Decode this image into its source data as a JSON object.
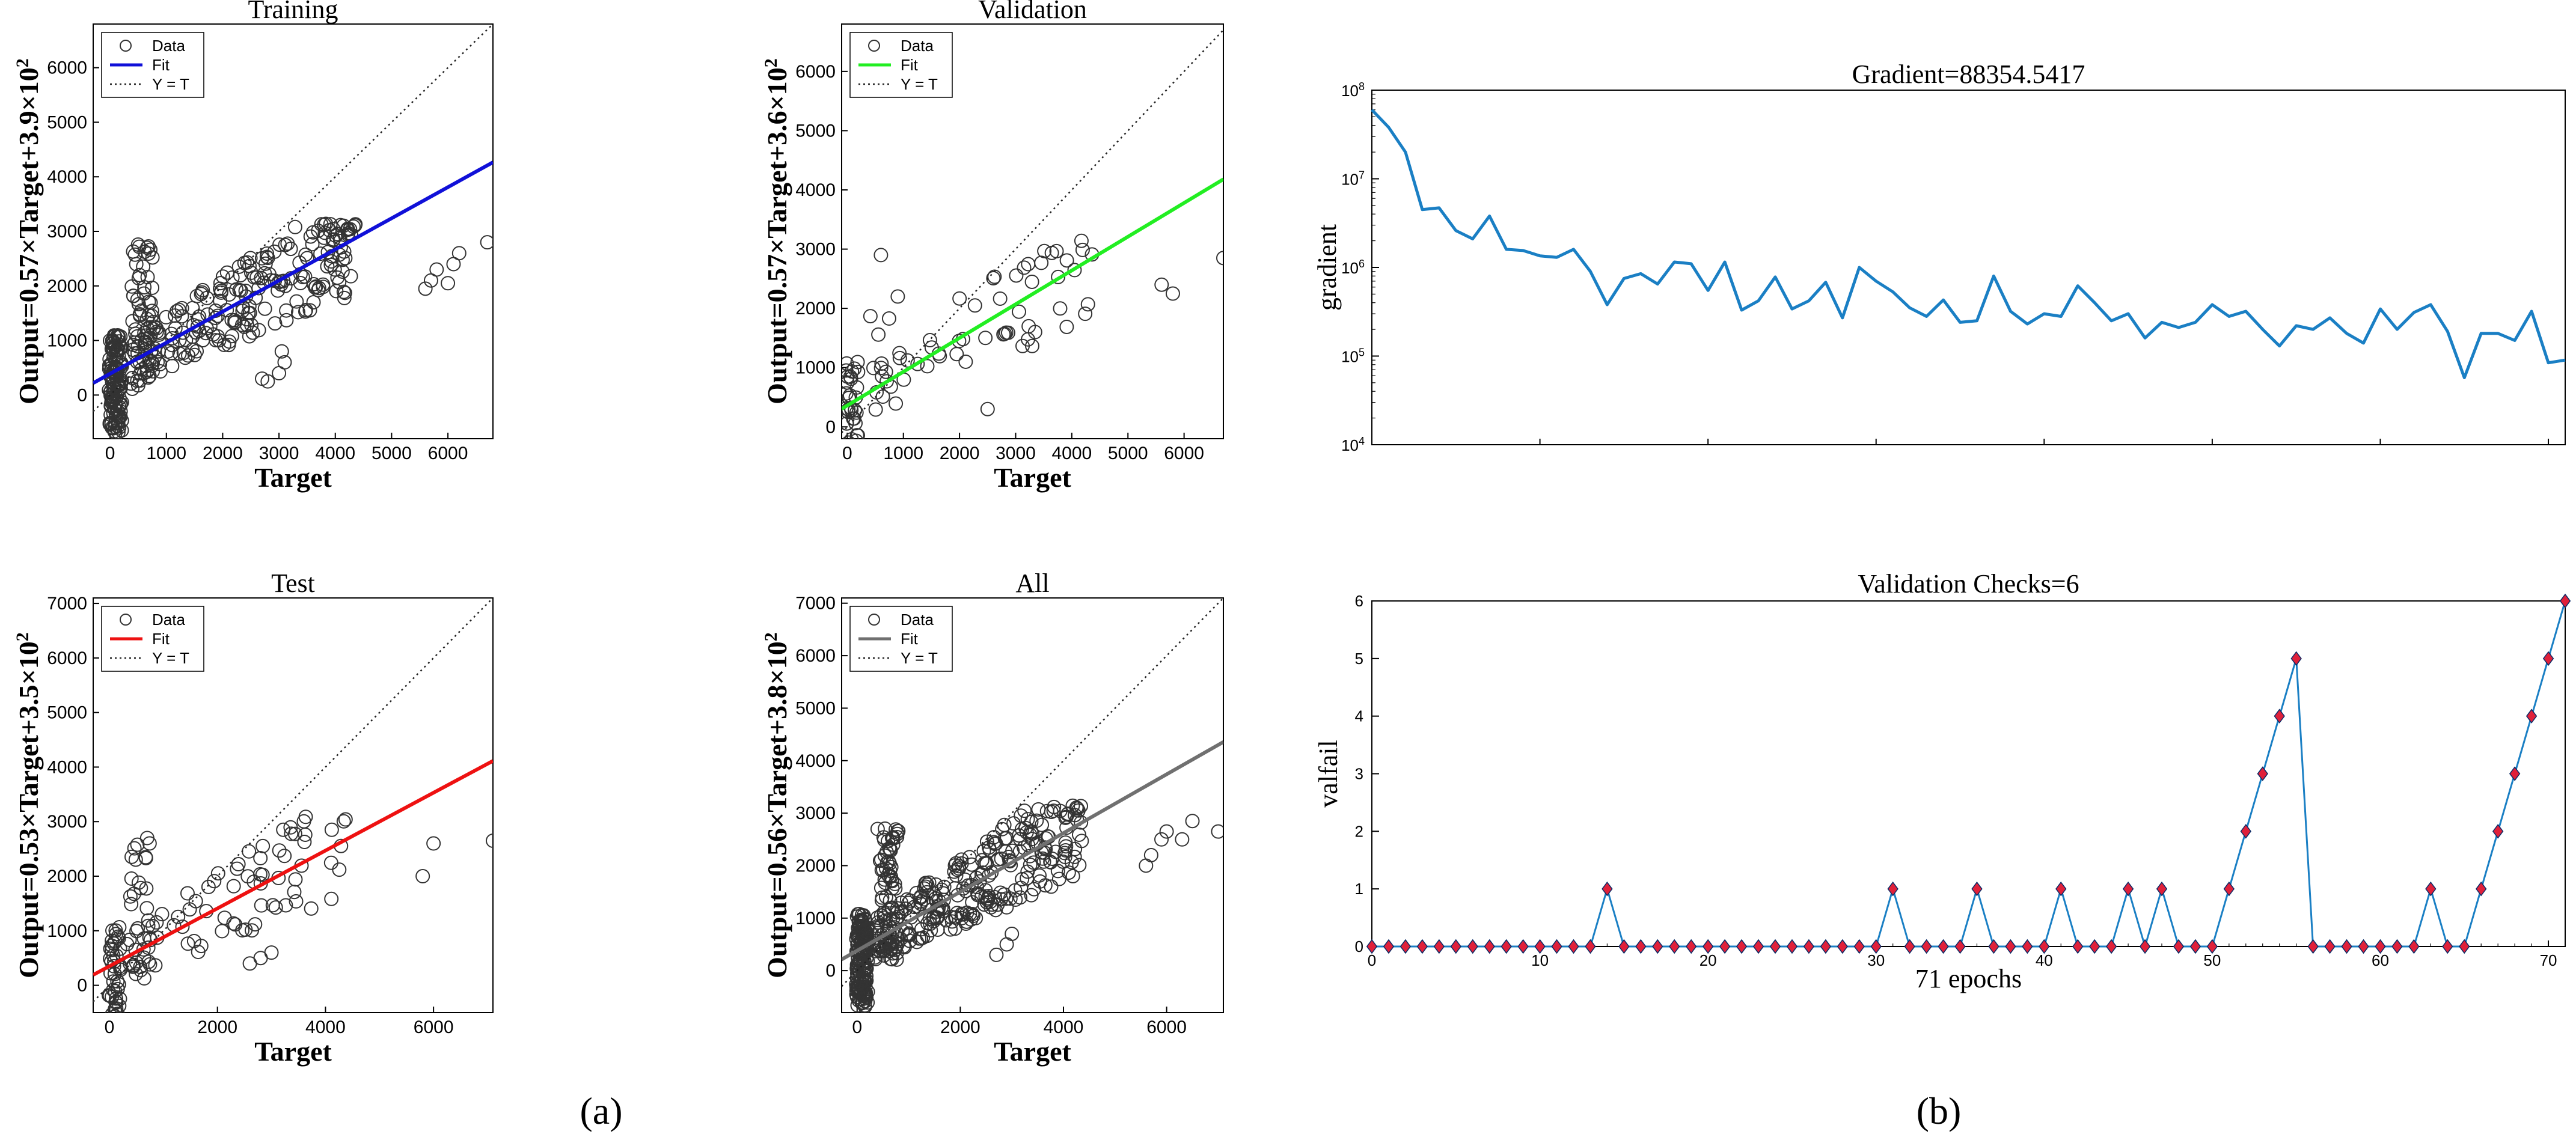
{
  "panels": {
    "a": "(a)",
    "b": "(b)"
  },
  "chart_data": [
    {
      "id": "training",
      "type": "scatter",
      "title": "Training",
      "xlabel": "Target",
      "ylabel": "Output=0.57×Target+3.9×10",
      "ylabel_sup": "2",
      "xlim": [
        -300,
        6800
      ],
      "ylim": [
        -800,
        6800
      ],
      "xticks": [
        0,
        1000,
        2000,
        3000,
        4000,
        5000,
        6000
      ],
      "yticks": [
        0,
        1000,
        2000,
        3000,
        4000,
        5000,
        6000
      ],
      "fit": {
        "slope": 0.57,
        "intercept": 390,
        "color": "#1010d8"
      },
      "legend": [
        "Data",
        "Fit",
        "Y = T"
      ],
      "seed": 11,
      "n": 420,
      "outliers": [
        [
          5600,
          1950
        ],
        [
          5700,
          2100
        ],
        [
          5800,
          2300
        ],
        [
          6000,
          2050
        ],
        [
          6100,
          2400
        ],
        [
          6200,
          2600
        ],
        [
          6700,
          2800
        ],
        [
          2800,
          250
        ],
        [
          3000,
          400
        ],
        [
          3100,
          600
        ],
        [
          2700,
          300
        ],
        [
          3050,
          800
        ]
      ]
    },
    {
      "id": "validation",
      "type": "scatter",
      "title": "Validation",
      "xlabel": "Target",
      "ylabel": "Output=0.57×Target+3.6×10",
      "ylabel_sup": "2",
      "xlim": [
        -100,
        6700
      ],
      "ylim": [
        -200,
        6800
      ],
      "xticks": [
        0,
        1000,
        2000,
        3000,
        4000,
        5000,
        6000
      ],
      "yticks": [
        0,
        1000,
        2000,
        3000,
        4000,
        5000,
        6000
      ],
      "fit": {
        "slope": 0.57,
        "intercept": 360,
        "color": "#22ee22"
      },
      "legend": [
        "Data",
        "Fit",
        "Y = T"
      ],
      "seed": 23,
      "n": 110,
      "outliers": [
        [
          5600,
          2400
        ],
        [
          5800,
          2250
        ],
        [
          6700,
          2850
        ],
        [
          2500,
          300
        ],
        [
          600,
          2900
        ],
        [
          900,
          2200
        ]
      ]
    },
    {
      "id": "test",
      "type": "scatter",
      "title": "Test",
      "xlabel": "Target",
      "ylabel": "Output=0.53×Target+3.5×10",
      "ylabel_sup": "2",
      "xlim": [
        -300,
        7100
      ],
      "ylim": [
        -500,
        7100
      ],
      "xticks": [
        0,
        2000,
        4000,
        6000
      ],
      "yticks": [
        0,
        1000,
        2000,
        3000,
        4000,
        5000,
        6000,
        7000
      ],
      "fit": {
        "slope": 0.53,
        "intercept": 350,
        "color": "#ee1111"
      },
      "legend": [
        "Data",
        "Fit",
        "Y = T"
      ],
      "seed": 37,
      "n": 150,
      "outliers": [
        [
          5800,
          2000
        ],
        [
          6000,
          2600
        ],
        [
          7100,
          2650
        ],
        [
          2600,
          400
        ],
        [
          2800,
          500
        ],
        [
          3000,
          600
        ],
        [
          700,
          2700
        ]
      ]
    },
    {
      "id": "all",
      "type": "scatter",
      "title": "All",
      "xlabel": "Target",
      "ylabel": "Output=0.56×Target+3.8×10",
      "ylabel_sup": "2",
      "xlim": [
        -300,
        7100
      ],
      "ylim": [
        -800,
        7100
      ],
      "xticks": [
        0,
        2000,
        4000,
        6000
      ],
      "yticks": [
        0,
        1000,
        2000,
        3000,
        4000,
        5000,
        6000,
        7000
      ],
      "fit": {
        "slope": 0.56,
        "intercept": 380,
        "color": "#707070"
      },
      "legend": [
        "Data",
        "Fit",
        "Y = T"
      ],
      "seed": 53,
      "n": 520,
      "outliers": [
        [
          5600,
          2000
        ],
        [
          5700,
          2200
        ],
        [
          5900,
          2500
        ],
        [
          6000,
          2650
        ],
        [
          6300,
          2500
        ],
        [
          6500,
          2850
        ],
        [
          7000,
          2650
        ],
        [
          2700,
          300
        ],
        [
          2900,
          500
        ],
        [
          3000,
          700
        ],
        [
          1900,
          800
        ]
      ]
    },
    {
      "id": "gradient",
      "type": "line",
      "title": "Gradient=88354.5417",
      "xlabel": "",
      "ylabel": "gradient",
      "xlim": [
        0,
        71
      ],
      "ylog": true,
      "ylim_exp": [
        4,
        8
      ],
      "yticks_exp": [
        4,
        5,
        6,
        7,
        8
      ],
      "color": "#1a7fc4",
      "values": [
        60000000,
        38000000,
        20000000,
        4500000,
        4700000,
        2600000,
        2100000,
        3800000,
        1600000,
        1550000,
        1350000,
        1300000,
        1600000,
        900000,
        380000,
        750000,
        850000,
        650000,
        1150000,
        1100000,
        550000,
        1150000,
        330000,
        420000,
        780000,
        340000,
        420000,
        680000,
        270000,
        1000000,
        700000,
        530000,
        350000,
        280000,
        430000,
        240000,
        250000,
        800000,
        320000,
        230000,
        300000,
        280000,
        620000,
        400000,
        250000,
        300000,
        160000,
        240000,
        210000,
        240000,
        380000,
        280000,
        320000,
        200000,
        130000,
        220000,
        200000,
        270000,
        180000,
        140000,
        340000,
        200000,
        310000,
        380000,
        190000,
        57000,
        180000,
        180000,
        150000,
        320000,
        84000,
        90000
      ]
    },
    {
      "id": "valchecks",
      "type": "scatter",
      "title": "Validation Checks=6",
      "xlabel": "71 epochs",
      "ylabel": "valfail",
      "xlim": [
        0,
        71
      ],
      "ylim": [
        0,
        6
      ],
      "xticks": [
        0,
        10,
        20,
        30,
        40,
        50,
        60,
        70
      ],
      "yticks": [
        0,
        1,
        2,
        3,
        4,
        5,
        6
      ],
      "marker_color": "#e0203a",
      "line_color": "#1a7fc4",
      "values": [
        0,
        0,
        0,
        0,
        0,
        0,
        0,
        0,
        0,
        0,
        0,
        0,
        0,
        0,
        1,
        0,
        0,
        0,
        0,
        0,
        0,
        0,
        0,
        0,
        0,
        0,
        0,
        0,
        0,
        0,
        0,
        1,
        0,
        0,
        0,
        0,
        1,
        0,
        0,
        0,
        0,
        1,
        0,
        0,
        0,
        1,
        0,
        1,
        0,
        0,
        0,
        1,
        2,
        3,
        4,
        5,
        0,
        0,
        0,
        0,
        0,
        0,
        0,
        1,
        0,
        0,
        1,
        2,
        3,
        4,
        5,
        6
      ]
    }
  ]
}
